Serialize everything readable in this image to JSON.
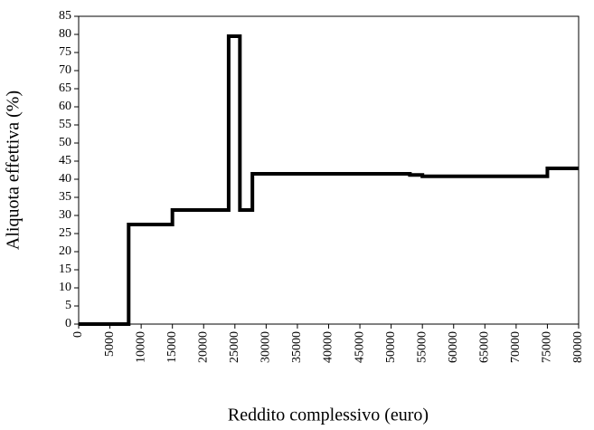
{
  "chart_data": {
    "type": "line",
    "x_label": "Reddito complessivo (euro)",
    "y_label": "Aliquota effettiva (%)",
    "series": [
      {
        "color": "#000000",
        "x": [
          0,
          8000,
          8000,
          15000,
          15000,
          24000,
          24000,
          25800,
          25800,
          27800,
          27800,
          53000,
          53000,
          55000,
          55000,
          75000,
          75000,
          80000
        ],
        "values": [
          0,
          0,
          27.5,
          27.5,
          31.5,
          31.5,
          79.5,
          79.5,
          31.5,
          31.5,
          41.5,
          41.5,
          41.2,
          41.2,
          40.8,
          40.8,
          43,
          43
        ]
      }
    ],
    "xlim": [
      0,
      80000
    ],
    "xticks": [
      0,
      5000,
      10000,
      15000,
      20000,
      25000,
      30000,
      35000,
      40000,
      45000,
      50000,
      55000,
      60000,
      65000,
      70000,
      75000,
      80000
    ],
    "ylim": [
      0,
      85
    ],
    "yticks": [
      0,
      5,
      10,
      15,
      20,
      25,
      30,
      35,
      40,
      45,
      50,
      55,
      60,
      65,
      70,
      75,
      80,
      85
    ],
    "grid": false
  }
}
